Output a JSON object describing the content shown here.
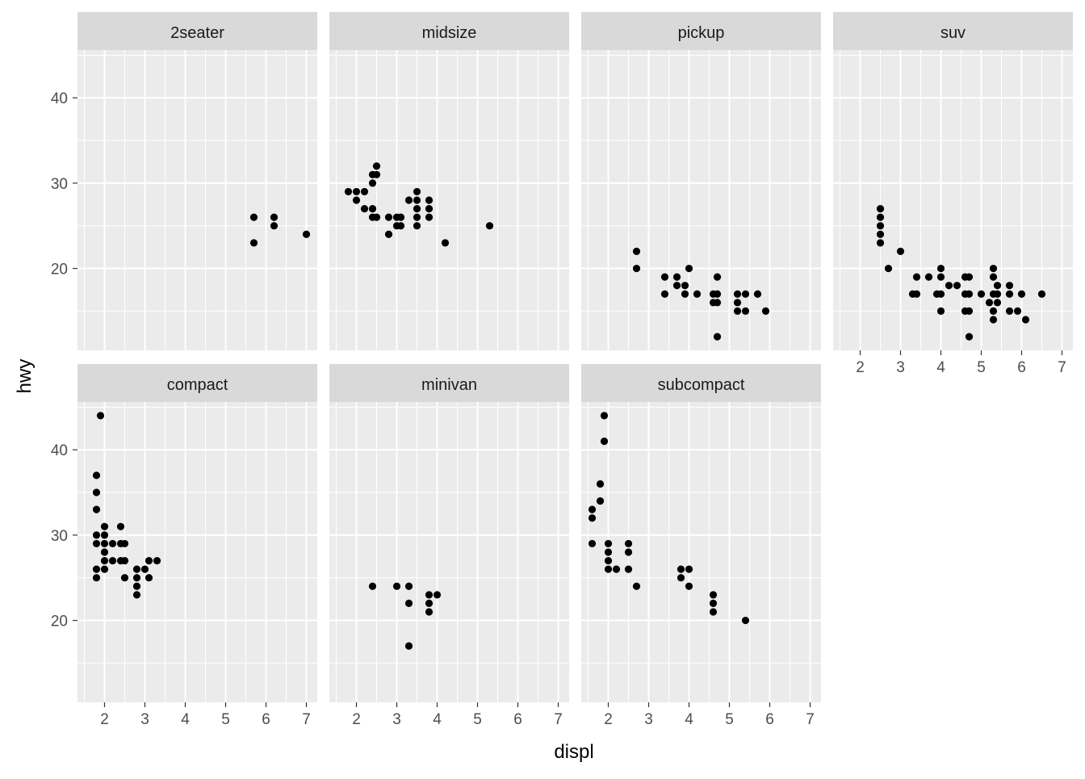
{
  "chart_data": {
    "type": "scatter",
    "xlabel": "displ",
    "ylabel": "hwy",
    "xlim": [
      1.33,
      7.27
    ],
    "ylim": [
      10.4,
      45.6
    ],
    "x_ticks": [
      2,
      3,
      4,
      5,
      6,
      7
    ],
    "y_ticks": [
      20,
      30,
      40
    ],
    "point_color": "#000000",
    "panel_background": "#ebebeb",
    "strip_background": "#d9d9d9",
    "grid_color": "#ffffff",
    "facets": [
      {
        "name": "2seater",
        "points": [
          [
            5.7,
            26
          ],
          [
            5.7,
            23
          ],
          [
            6.2,
            26
          ],
          [
            6.2,
            25
          ],
          [
            7.0,
            24
          ]
        ]
      },
      {
        "name": "midsize",
        "points": [
          [
            1.8,
            29
          ],
          [
            2.0,
            29
          ],
          [
            2.0,
            28
          ],
          [
            2.2,
            29
          ],
          [
            2.2,
            27
          ],
          [
            2.4,
            27
          ],
          [
            2.4,
            26
          ],
          [
            2.4,
            30
          ],
          [
            2.4,
            31
          ],
          [
            2.5,
            31
          ],
          [
            2.5,
            32
          ],
          [
            2.5,
            26
          ],
          [
            2.8,
            24
          ],
          [
            2.8,
            26
          ],
          [
            3.0,
            26
          ],
          [
            3.0,
            25
          ],
          [
            3.1,
            26
          ],
          [
            3.1,
            25
          ],
          [
            3.3,
            28
          ],
          [
            3.5,
            29
          ],
          [
            3.5,
            28
          ],
          [
            3.5,
            27
          ],
          [
            3.5,
            26
          ],
          [
            3.5,
            25
          ],
          [
            3.8,
            28
          ],
          [
            3.8,
            27
          ],
          [
            3.8,
            26
          ],
          [
            4.2,
            23
          ],
          [
            5.3,
            25
          ]
        ]
      },
      {
        "name": "pickup",
        "points": [
          [
            2.7,
            22
          ],
          [
            2.7,
            20
          ],
          [
            3.4,
            19
          ],
          [
            3.4,
            17
          ],
          [
            3.7,
            19
          ],
          [
            3.7,
            18
          ],
          [
            3.9,
            17
          ],
          [
            3.9,
            18
          ],
          [
            4.0,
            20
          ],
          [
            4.2,
            17
          ],
          [
            4.6,
            17
          ],
          [
            4.6,
            16
          ],
          [
            4.7,
            19
          ],
          [
            4.7,
            17
          ],
          [
            4.7,
            16
          ],
          [
            4.7,
            12
          ],
          [
            5.2,
            17
          ],
          [
            5.2,
            16
          ],
          [
            5.2,
            15
          ],
          [
            5.4,
            17
          ],
          [
            5.4,
            15
          ],
          [
            5.7,
            17
          ],
          [
            5.9,
            15
          ]
        ]
      },
      {
        "name": "suv",
        "points": [
          [
            2.5,
            27
          ],
          [
            2.5,
            26
          ],
          [
            2.5,
            25
          ],
          [
            2.5,
            24
          ],
          [
            2.5,
            23
          ],
          [
            2.7,
            20
          ],
          [
            3.0,
            22
          ],
          [
            3.3,
            17
          ],
          [
            3.4,
            17
          ],
          [
            3.4,
            19
          ],
          [
            3.7,
            19
          ],
          [
            3.9,
            17
          ],
          [
            4.0,
            20
          ],
          [
            4.0,
            19
          ],
          [
            4.0,
            17
          ],
          [
            4.0,
            15
          ],
          [
            4.2,
            18
          ],
          [
            4.4,
            18
          ],
          [
            4.6,
            19
          ],
          [
            4.6,
            17
          ],
          [
            4.6,
            15
          ],
          [
            4.7,
            19
          ],
          [
            4.7,
            17
          ],
          [
            4.7,
            15
          ],
          [
            4.7,
            12
          ],
          [
            5.0,
            17
          ],
          [
            5.2,
            16
          ],
          [
            5.3,
            20
          ],
          [
            5.3,
            19
          ],
          [
            5.3,
            17
          ],
          [
            5.3,
            15
          ],
          [
            5.3,
            14
          ],
          [
            5.4,
            18
          ],
          [
            5.4,
            17
          ],
          [
            5.4,
            16
          ],
          [
            5.7,
            18
          ],
          [
            5.7,
            17
          ],
          [
            5.7,
            15
          ],
          [
            5.9,
            15
          ],
          [
            6.0,
            17
          ],
          [
            6.1,
            14
          ],
          [
            6.5,
            17
          ]
        ]
      },
      {
        "name": "compact",
        "points": [
          [
            1.8,
            37
          ],
          [
            1.8,
            35
          ],
          [
            1.8,
            33
          ],
          [
            1.8,
            30
          ],
          [
            1.8,
            29
          ],
          [
            1.8,
            26
          ],
          [
            1.8,
            25
          ],
          [
            1.9,
            44
          ],
          [
            2.0,
            31
          ],
          [
            2.0,
            30
          ],
          [
            2.0,
            29
          ],
          [
            2.0,
            28
          ],
          [
            2.0,
            27
          ],
          [
            2.0,
            26
          ],
          [
            2.2,
            29
          ],
          [
            2.2,
            27
          ],
          [
            2.4,
            31
          ],
          [
            2.4,
            29
          ],
          [
            2.4,
            27
          ],
          [
            2.5,
            29
          ],
          [
            2.5,
            27
          ],
          [
            2.5,
            25
          ],
          [
            2.8,
            26
          ],
          [
            2.8,
            25
          ],
          [
            2.8,
            24
          ],
          [
            2.8,
            23
          ],
          [
            3.0,
            26
          ],
          [
            3.1,
            27
          ],
          [
            3.1,
            25
          ],
          [
            3.3,
            27
          ]
        ]
      },
      {
        "name": "minivan",
        "points": [
          [
            2.4,
            24
          ],
          [
            3.0,
            24
          ],
          [
            3.3,
            24
          ],
          [
            3.3,
            22
          ],
          [
            3.3,
            17
          ],
          [
            3.8,
            23
          ],
          [
            3.8,
            22
          ],
          [
            3.8,
            21
          ],
          [
            4.0,
            23
          ]
        ]
      },
      {
        "name": "subcompact",
        "points": [
          [
            1.6,
            33
          ],
          [
            1.6,
            32
          ],
          [
            1.6,
            29
          ],
          [
            1.8,
            36
          ],
          [
            1.8,
            34
          ],
          [
            1.9,
            44
          ],
          [
            1.9,
            41
          ],
          [
            2.0,
            29
          ],
          [
            2.0,
            28
          ],
          [
            2.0,
            27
          ],
          [
            2.0,
            26
          ],
          [
            2.2,
            26
          ],
          [
            2.5,
            29
          ],
          [
            2.5,
            28
          ],
          [
            2.5,
            26
          ],
          [
            2.7,
            24
          ],
          [
            3.8,
            26
          ],
          [
            3.8,
            25
          ],
          [
            4.0,
            26
          ],
          [
            4.0,
            24
          ],
          [
            4.6,
            23
          ],
          [
            4.6,
            22
          ],
          [
            4.6,
            21
          ],
          [
            5.4,
            20
          ]
        ]
      }
    ]
  }
}
